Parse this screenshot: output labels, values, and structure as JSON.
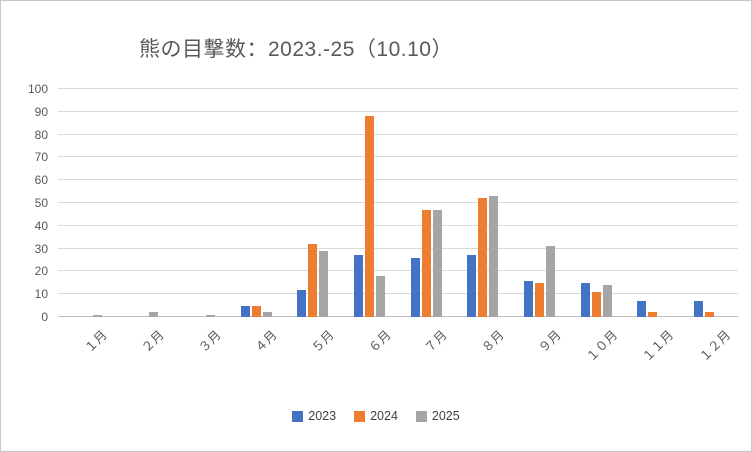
{
  "window": {
    "background": "#ffffff",
    "border_color": "#c9c7c5"
  },
  "chart_data": {
    "type": "bar",
    "title": "熊の目撃数：2023.-25（10.10）",
    "categories": [
      "１月",
      "２月",
      "３月",
      "４月",
      "５月",
      "６月",
      "７月",
      "８月",
      "９月",
      "１０月",
      "１１月",
      "１２月"
    ],
    "series": [
      {
        "name": "2023",
        "color": "#4472C4",
        "values": [
          0,
          0,
          0,
          5,
          12,
          27,
          26,
          27,
          16,
          15,
          7,
          7
        ]
      },
      {
        "name": "2024",
        "color": "#ED7D31",
        "values": [
          0,
          0,
          0,
          5,
          32,
          88,
          47,
          52,
          15,
          11,
          2,
          2
        ]
      },
      {
        "name": "2025",
        "color": "#A5A5A5",
        "values": [
          1,
          2,
          1,
          2,
          29,
          18,
          47,
          53,
          31,
          14,
          0,
          0
        ]
      }
    ],
    "xlabel": "",
    "ylabel": "",
    "ylim": [
      0,
      100
    ],
    "yticks": [
      0,
      10,
      20,
      30,
      40,
      50,
      60,
      70,
      80,
      90,
      100
    ],
    "grid": true,
    "gridline_color": "#d9d9d9",
    "axis_text_color": "#595959",
    "legend_position": "bottom",
    "legend_labels": [
      "2023",
      "2024",
      "2025"
    ]
  }
}
